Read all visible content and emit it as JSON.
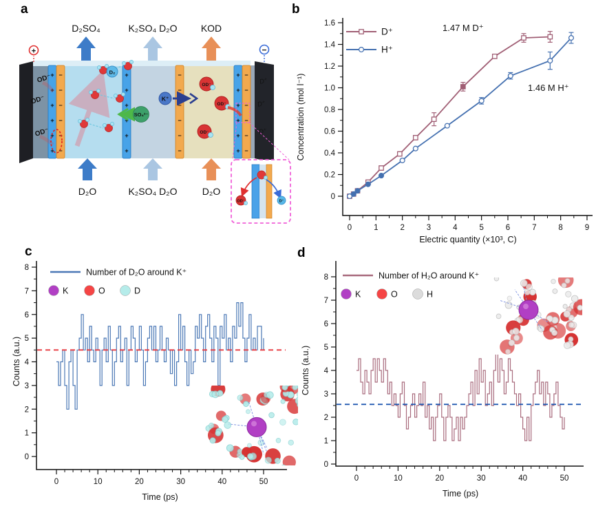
{
  "panels": {
    "a": "a",
    "b": "b",
    "c": "c",
    "d": "d"
  },
  "panel_a": {
    "top_flows": [
      "D₂SO₄",
      "K₂SO₄ D₂O",
      "KOD"
    ],
    "bottom_flows": [
      "D₂O",
      "K₂SO₄ D₂O",
      "D₂O"
    ],
    "anode_terminal": "+",
    "cathode_terminal": "−",
    "membrane_plus": "+",
    "membrane_minus": "−",
    "anode_ions": [
      "OD⁻",
      "OD⁻",
      "OD⁻"
    ],
    "cathode_ions": [
      "D⁺",
      "D⁺",
      "D⁺"
    ],
    "d2_gas": "D₂",
    "sulfate_ion": "SO₄²⁻",
    "potassium_ion": "K⁺",
    "base_ions": [
      "OD⁻",
      "OD⁻",
      "OD⁻"
    ],
    "inset": {
      "od_label": "OD⁻",
      "d_label": "D⁺"
    }
  },
  "chart_data": [
    {
      "id": "b",
      "type": "line",
      "xlabel": "Electric quantity (×10³, C)",
      "ylabel": "Concentration (mol l⁻¹)",
      "xlim": [
        0,
        9
      ],
      "ylim": [
        0,
        1.6
      ],
      "xticks": [
        0,
        1,
        2,
        3,
        4,
        5,
        6,
        7,
        8,
        9
      ],
      "yticks": [
        0,
        0.2,
        0.4,
        0.6,
        0.8,
        1.0,
        1.2,
        1.4,
        1.6
      ],
      "ytick_labels": [
        "0",
        "0.2",
        "0.4",
        "0.6",
        "0.8",
        "1.0",
        "1.2",
        "1.4",
        "1.6"
      ],
      "legend_position": "top-left",
      "series": [
        {
          "name": "D⁺",
          "color": "#a05e74",
          "marker": "square",
          "x": [
            0,
            0.15,
            0.3,
            0.7,
            1.2,
            1.9,
            2.5,
            3.2,
            4.3,
            5.5,
            6.6,
            7.6
          ],
          "y": [
            0,
            0.02,
            0.05,
            0.13,
            0.26,
            0.39,
            0.54,
            0.71,
            1.01,
            1.29,
            1.46,
            1.47
          ],
          "yerr": [
            0,
            0,
            0,
            0,
            0.02,
            0.02,
            0.02,
            0.06,
            0.04,
            0.02,
            0.04,
            0.05
          ],
          "filled_points": [
            8
          ]
        },
        {
          "name": "H⁺",
          "color": "#4470b0",
          "marker": "circle",
          "x": [
            0,
            0.15,
            0.3,
            0.7,
            1.2,
            2.0,
            2.5,
            3.7,
            5.0,
            6.1,
            7.6,
            8.4
          ],
          "y": [
            0,
            0.02,
            0.05,
            0.11,
            0.19,
            0.33,
            0.44,
            0.65,
            0.88,
            1.11,
            1.25,
            1.46
          ],
          "yerr": [
            0,
            0,
            0,
            0,
            0,
            0,
            0,
            0,
            0.03,
            0.03,
            0.08,
            0.05
          ],
          "filled_points": [
            1,
            2,
            3,
            4
          ]
        }
      ],
      "annotations": [
        "1.47 M D⁺",
        "1.46 M H⁺"
      ]
    },
    {
      "id": "c",
      "type": "step",
      "legend": "Number of D₂O around K⁺",
      "atom_legend": [
        {
          "label": "K",
          "color": "#b13fc4"
        },
        {
          "label": "O",
          "color": "#f54545"
        },
        {
          "label": "D",
          "color": "#b5ecea"
        }
      ],
      "xlabel": "Time (ps)",
      "ylabel": "Counts (a.u.)",
      "line_color": "#4a77b5",
      "mean_line": {
        "value": 4.5,
        "color": "#e8383d"
      },
      "xlim": [
        0,
        50
      ],
      "ylim": [
        0,
        8
      ],
      "xticks": [
        0,
        10,
        20,
        30,
        40,
        50
      ],
      "yticks": [
        0,
        1,
        2,
        3,
        4,
        5,
        6,
        7,
        8
      ],
      "t_start": 0,
      "t_step": 0.5,
      "values": [
        4,
        3,
        4,
        4.5,
        3,
        2,
        4,
        4.5,
        3,
        2,
        4.5,
        5,
        6,
        4.5,
        5,
        4,
        5.5,
        4.5,
        4,
        5,
        4.5,
        3,
        4.5,
        5,
        4,
        5.5,
        4.5,
        3,
        4,
        5,
        5.5,
        4,
        4.5,
        5,
        3,
        4.5,
        5.5,
        5,
        4,
        4.5,
        5.5,
        4.5,
        3,
        4,
        5,
        5.5,
        4.5,
        5.5,
        4,
        4.5,
        5.5,
        4.5,
        4,
        5,
        4.5,
        3.5,
        4.5,
        3,
        4,
        6,
        4.5,
        5.5,
        4,
        3,
        4.5,
        3.5,
        4,
        5.5,
        5,
        6,
        5,
        4,
        5.5,
        6,
        5,
        4,
        5.5,
        5,
        3,
        5.5,
        5,
        6,
        4.5,
        5,
        4,
        5.5,
        5,
        6.5,
        5.5,
        6.5,
        5,
        4,
        5,
        6,
        4.5,
        5,
        4.5,
        5.5,
        5.5,
        4.5,
        5
      ]
    },
    {
      "id": "d",
      "type": "step",
      "legend": "Number of H₂O around K⁺",
      "atom_legend": [
        {
          "label": "K",
          "color": "#b13fc4"
        },
        {
          "label": "O",
          "color": "#f54545"
        },
        {
          "label": "H",
          "color": "#dcdcdc"
        }
      ],
      "xlabel": "Time (ps)",
      "ylabel": "Counts (a.u.)",
      "line_color": "#a86a7c",
      "mean_line": {
        "value": 2.55,
        "color": "#1f57b0"
      },
      "xlim": [
        0,
        50
      ],
      "ylim": [
        0,
        8
      ],
      "xticks": [
        0,
        10,
        20,
        30,
        40,
        50
      ],
      "yticks": [
        0,
        1,
        2,
        3,
        4,
        5,
        6,
        7,
        8
      ],
      "t_start": 0,
      "t_step": 0.5,
      "values": [
        4,
        4.5,
        3.5,
        3,
        4,
        3.5,
        3,
        4,
        4.5,
        3.5,
        4.5,
        4,
        3.5,
        4.5,
        4,
        3,
        3.5,
        2.5,
        3,
        2.5,
        2,
        3,
        3.5,
        2.5,
        1.5,
        2,
        2.5,
        3,
        2,
        2.5,
        3,
        2.5,
        3.5,
        2,
        2.5,
        1.5,
        2,
        1,
        2,
        2.5,
        3,
        2,
        1,
        2,
        2.5,
        2,
        1,
        1.5,
        2,
        1,
        2,
        1.5,
        2,
        2.5,
        3,
        3.5,
        2.5,
        4,
        3,
        4.5,
        3.5,
        4,
        2.5,
        3,
        3.5,
        2.5,
        4,
        5,
        3.5,
        4.5,
        4,
        3,
        3.5,
        4.5,
        4,
        3.5,
        3,
        2.5,
        3,
        2,
        1.5,
        1,
        2,
        1,
        2.5,
        3,
        3.5,
        4,
        3,
        3.5,
        2.5,
        3.5,
        3,
        2,
        2.5,
        3,
        3.5,
        2.5,
        2,
        1.5,
        2
      ]
    }
  ]
}
